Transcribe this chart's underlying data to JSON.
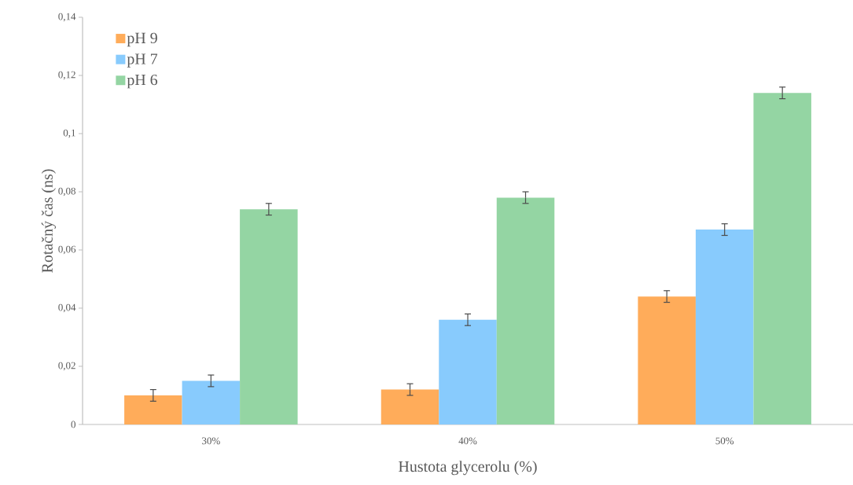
{
  "chart_data": {
    "type": "bar",
    "xlabel": "Hustota glycerolu (%)",
    "ylabel": "Rotačný čas (ns)",
    "categories": [
      "30%",
      "40%",
      "50%"
    ],
    "series": [
      {
        "name": "pH 9",
        "color": "#ffac5a",
        "values": [
          0.01,
          0.012,
          0.044
        ],
        "errors": [
          0.002,
          0.002,
          0.002
        ]
      },
      {
        "name": "pH 7",
        "color": "#88cbfd",
        "values": [
          0.015,
          0.036,
          0.067
        ],
        "errors": [
          0.002,
          0.002,
          0.002
        ]
      },
      {
        "name": "pH 6",
        "color": "#94d5a3",
        "values": [
          0.074,
          0.078,
          0.114
        ],
        "errors": [
          0.002,
          0.002,
          0.002
        ]
      }
    ],
    "ylim": [
      0,
      0.14
    ],
    "yticks": [
      0,
      {
        "value": 0.02,
        "label": "0,02"
      },
      {
        "value": 0.04,
        "label": "0,04"
      },
      {
        "value": 0.06,
        "label": "0,06"
      },
      {
        "value": 0.08,
        "label": "0,08"
      },
      {
        "value": 0.1,
        "label": "0,1"
      },
      {
        "value": 0.12,
        "label": "0,12"
      },
      {
        "value": 0.14,
        "label": "0,14"
      }
    ],
    "grid": false,
    "legend": "top left"
  }
}
